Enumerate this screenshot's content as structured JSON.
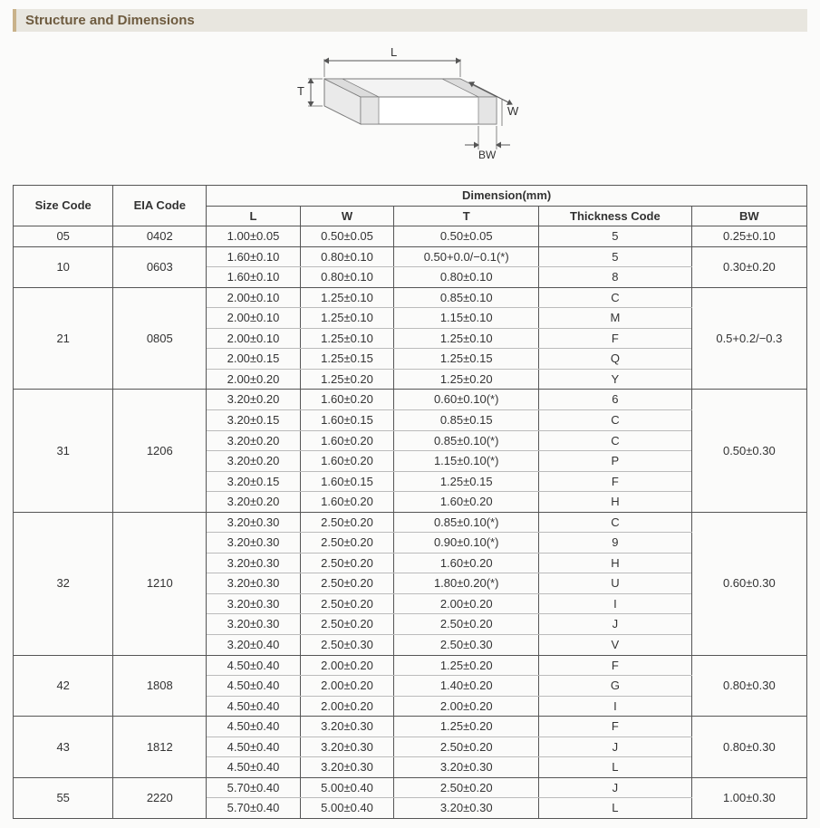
{
  "header": {
    "title": "Structure and Dimensions"
  },
  "diagram": {
    "labels": {
      "L": "L",
      "W": "W",
      "T": "T",
      "BW": "BW"
    }
  },
  "table": {
    "header": {
      "size_code": "Size Code",
      "eia_code": "EIA Code",
      "dimension": "Dimension(mm)",
      "L": "L",
      "W": "W",
      "T": "T",
      "thickness_code": "Thickness Code",
      "BW": "BW"
    },
    "groups": [
      {
        "size": "05",
        "eia": "0402",
        "bw": "0.25±0.10",
        "rows": [
          {
            "L": "1.00±0.05",
            "W": "0.50±0.05",
            "T": "0.50±0.05",
            "tc": "5"
          }
        ]
      },
      {
        "size": "10",
        "eia": "0603",
        "bw": "0.30±0.20",
        "rows": [
          {
            "L": "1.60±0.10",
            "W": "0.80±0.10",
            "T": "0.50+0.0/−0.1(*)",
            "tc": "5"
          },
          {
            "L": "1.60±0.10",
            "W": "0.80±0.10",
            "T": "0.80±0.10",
            "tc": "8"
          }
        ]
      },
      {
        "size": "21",
        "eia": "0805",
        "bw": "0.5+0.2/−0.3",
        "rows": [
          {
            "L": "2.00±0.10",
            "W": "1.25±0.10",
            "T": "0.85±0.10",
            "tc": "C"
          },
          {
            "L": "2.00±0.10",
            "W": "1.25±0.10",
            "T": "1.15±0.10",
            "tc": "M"
          },
          {
            "L": "2.00±0.10",
            "W": "1.25±0.10",
            "T": "1.25±0.10",
            "tc": "F"
          },
          {
            "L": "2.00±0.15",
            "W": "1.25±0.15",
            "T": "1.25±0.15",
            "tc": "Q"
          },
          {
            "L": "2.00±0.20",
            "W": "1.25±0.20",
            "T": "1.25±0.20",
            "tc": "Y"
          }
        ]
      },
      {
        "size": "31",
        "eia": "1206",
        "bw": "0.50±0.30",
        "rows": [
          {
            "L": "3.20±0.20",
            "W": "1.60±0.20",
            "T": "0.60±0.10(*)",
            "tc": "6"
          },
          {
            "L": "3.20±0.15",
            "W": "1.60±0.15",
            "T": "0.85±0.15",
            "tc": "C"
          },
          {
            "L": "3.20±0.20",
            "W": "1.60±0.20",
            "T": "0.85±0.10(*)",
            "tc": "C"
          },
          {
            "L": "3.20±0.20",
            "W": "1.60±0.20",
            "T": "1.15±0.10(*)",
            "tc": "P"
          },
          {
            "L": "3.20±0.15",
            "W": "1.60±0.15",
            "T": "1.25±0.15",
            "tc": "F"
          },
          {
            "L": "3.20±0.20",
            "W": "1.60±0.20",
            "T": "1.60±0.20",
            "tc": "H"
          }
        ]
      },
      {
        "size": "32",
        "eia": "1210",
        "bw": "0.60±0.30",
        "rows": [
          {
            "L": "3.20±0.30",
            "W": "2.50±0.20",
            "T": "0.85±0.10(*)",
            "tc": "C"
          },
          {
            "L": "3.20±0.30",
            "W": "2.50±0.20",
            "T": "0.90±0.10(*)",
            "tc": "9"
          },
          {
            "L": "3.20±0.30",
            "W": "2.50±0.20",
            "T": "1.60±0.20",
            "tc": "H"
          },
          {
            "L": "3.20±0.30",
            "W": "2.50±0.20",
            "T": "1.80±0.20(*)",
            "tc": "U"
          },
          {
            "L": "3.20±0.30",
            "W": "2.50±0.20",
            "T": "2.00±0.20",
            "tc": "I"
          },
          {
            "L": "3.20±0.30",
            "W": "2.50±0.20",
            "T": "2.50±0.20",
            "tc": "J"
          },
          {
            "L": "3.20±0.40",
            "W": "2.50±0.30",
            "T": "2.50±0.30",
            "tc": "V"
          }
        ]
      },
      {
        "size": "42",
        "eia": "1808",
        "bw": "0.80±0.30",
        "rows": [
          {
            "L": "4.50±0.40",
            "W": "2.00±0.20",
            "T": "1.25±0.20",
            "tc": "F"
          },
          {
            "L": "4.50±0.40",
            "W": "2.00±0.20",
            "T": "1.40±0.20",
            "tc": "G"
          },
          {
            "L": "4.50±0.40",
            "W": "2.00±0.20",
            "T": "2.00±0.20",
            "tc": "I"
          }
        ]
      },
      {
        "size": "43",
        "eia": "1812",
        "bw": "0.80±0.30",
        "rows": [
          {
            "L": "4.50±0.40",
            "W": "3.20±0.30",
            "T": "1.25±0.20",
            "tc": "F"
          },
          {
            "L": "4.50±0.40",
            "W": "3.20±0.30",
            "T": "2.50±0.20",
            "tc": "J"
          },
          {
            "L": "4.50±0.40",
            "W": "3.20±0.30",
            "T": "3.20±0.30",
            "tc": "L"
          }
        ]
      },
      {
        "size": "55",
        "eia": "2220",
        "bw": "1.00±0.30",
        "rows": [
          {
            "L": "5.70±0.40",
            "W": "5.00±0.40",
            "T": "2.50±0.20",
            "tc": "J"
          },
          {
            "L": "5.70±0.40",
            "W": "5.00±0.40",
            "T": "3.20±0.30",
            "tc": "L"
          }
        ]
      }
    ]
  },
  "style": {
    "bar_bg": "#e8e6df",
    "bar_accent": "#c9b28a",
    "bar_text": "#6e5b3f",
    "border_hard": "#555555",
    "border_soft": "#bbbbbb",
    "background": "#fbfbfa",
    "font_size_body": 13,
    "font_size_header": 15
  }
}
